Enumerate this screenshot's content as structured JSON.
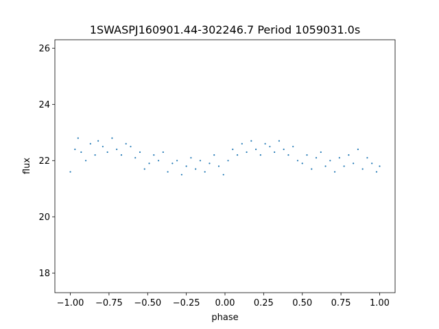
{
  "chart_data": {
    "type": "scatter",
    "title": "1SWASPJ160901.44-302246.7 Period 1059031.0s",
    "xlabel": "phase",
    "ylabel": "flux",
    "xlim": [
      -1.1,
      1.1
    ],
    "ylim": [
      17.3,
      26.3
    ],
    "xticks": [
      -1.0,
      -0.75,
      -0.5,
      -0.25,
      0.0,
      0.25,
      0.5,
      0.75,
      1.0
    ],
    "xtick_labels": [
      "−1.00",
      "−0.75",
      "−0.50",
      "−0.25",
      "0.00",
      "0.25",
      "0.50",
      "0.75",
      "1.00"
    ],
    "yticks": [
      18,
      20,
      22,
      24,
      26
    ],
    "ytick_labels": [
      "18",
      "20",
      "22",
      "24",
      "26"
    ],
    "grid": false,
    "point_color": "#1f77b4",
    "series": [
      {
        "x": [
          -1.0,
          -0.97,
          -0.95,
          -0.93,
          -0.9,
          -0.87,
          -0.84,
          -0.82,
          -0.79,
          -0.76,
          -0.73,
          -0.7,
          -0.67,
          -0.64,
          -0.61,
          -0.58,
          -0.55,
          -0.52,
          -0.49,
          -0.46,
          -0.43,
          -0.4,
          -0.37,
          -0.34,
          -0.31,
          -0.28,
          -0.25,
          -0.22,
          -0.19,
          -0.16,
          -0.13,
          -0.1,
          -0.07,
          -0.04,
          -0.01,
          0.02,
          0.05,
          0.08,
          0.11,
          0.14,
          0.17,
          0.2,
          0.23,
          0.26,
          0.29,
          0.32,
          0.35,
          0.38,
          0.41,
          0.44,
          0.47,
          0.5,
          0.53,
          0.56,
          0.59,
          0.62,
          0.65,
          0.68,
          0.71,
          0.74,
          0.77,
          0.8,
          0.83,
          0.86,
          0.89,
          0.92,
          0.95,
          0.98,
          1.0
        ],
        "y": [
          21.6,
          22.4,
          22.8,
          22.3,
          22.0,
          22.6,
          22.2,
          22.7,
          22.5,
          22.3,
          22.8,
          22.4,
          22.2,
          22.6,
          22.5,
          22.1,
          22.3,
          21.7,
          21.9,
          22.2,
          22.0,
          22.3,
          21.6,
          21.9,
          22.0,
          21.5,
          21.8,
          22.1,
          21.7,
          22.0,
          21.6,
          21.9,
          22.2,
          21.8,
          21.5,
          22.0,
          22.4,
          22.2,
          22.6,
          22.3,
          22.7,
          22.4,
          22.2,
          22.6,
          22.5,
          22.3,
          22.7,
          22.4,
          22.2,
          22.5,
          22.0,
          21.9,
          22.2,
          21.7,
          22.1,
          22.3,
          21.8,
          22.0,
          21.6,
          22.1,
          21.8,
          22.2,
          21.9,
          22.4,
          21.7,
          22.1,
          21.9,
          21.6,
          21.8
        ]
      }
    ]
  }
}
